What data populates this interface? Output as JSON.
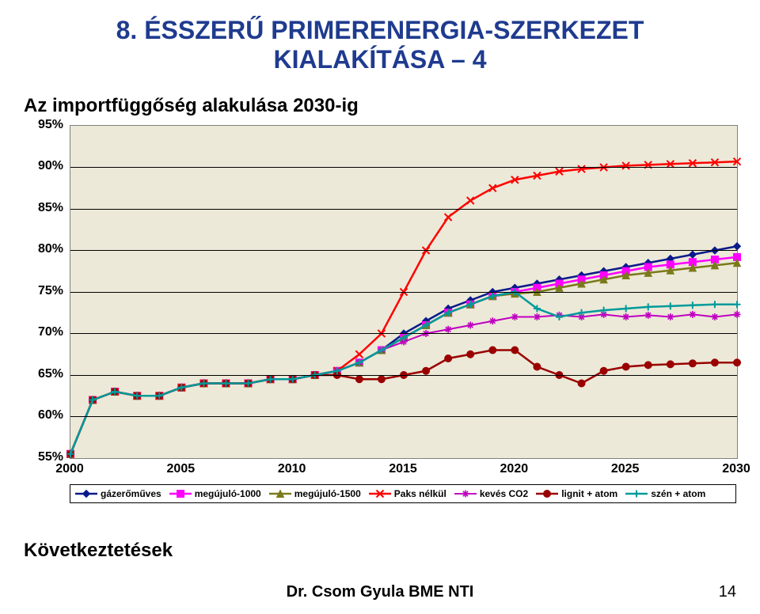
{
  "title_l1": "8. ÉSSZERŰ PRIMERENERGIA-SZERKEZET",
  "title_l2": "KIALAKÍTÁSA – 4",
  "title_color": "#1f3b8f",
  "subtitle": "Az importfüggőség alakulása 2030-ig",
  "conclusion": "Következtetések",
  "footer": "Dr. Csom Gyula BME NTI",
  "page_num": "14",
  "chart": {
    "background": "#ece9d8",
    "grid_color": "#000000",
    "ymin": 55,
    "ymax": 95,
    "ytick_step": 5,
    "xmin": 2000,
    "xmax": 2030,
    "xtick_step": 5,
    "x": [
      2000,
      2001,
      2002,
      2003,
      2004,
      2005,
      2006,
      2007,
      2008,
      2009,
      2010,
      2011,
      2012,
      2013,
      2014,
      2015,
      2016,
      2017,
      2018,
      2019,
      2020,
      2021,
      2022,
      2023,
      2024,
      2025,
      2026,
      2027,
      2028,
      2029,
      2030
    ],
    "series": [
      {
        "name": "gázerőműves",
        "label": "gázerőműves",
        "color": "#0a1a8a",
        "marker": "diamond",
        "lw": 2.5,
        "y": [
          55.5,
          62,
          63,
          62.5,
          62.5,
          63.5,
          64,
          64,
          64,
          64.5,
          64.5,
          65,
          65.5,
          66.5,
          68,
          70,
          71.5,
          73,
          74,
          75,
          75.5,
          76,
          76.5,
          77,
          77.5,
          78,
          78.5,
          79,
          79.5,
          80,
          80.5
        ]
      },
      {
        "name": "megújuló-1000",
        "label": "megújuló-1000",
        "color": "#ff00ff",
        "marker": "square",
        "lw": 2.5,
        "y": [
          55.5,
          62,
          63,
          62.5,
          62.5,
          63.5,
          64,
          64,
          64,
          64.5,
          64.5,
          65,
          65.5,
          66.5,
          68,
          69.5,
          71,
          72.5,
          73.5,
          74.5,
          75,
          75.5,
          76,
          76.5,
          77,
          77.5,
          78,
          78.3,
          78.6,
          78.9,
          79.2
        ]
      },
      {
        "name": "megújuló-1500",
        "label": "megújuló-1500",
        "color": "#7a7a1a",
        "marker": "triangle",
        "lw": 2.5,
        "y": [
          55.5,
          62,
          63,
          62.5,
          62.5,
          63.5,
          64,
          64,
          64,
          64.5,
          64.5,
          65,
          65.5,
          66.5,
          68,
          69.5,
          71,
          72.5,
          73.5,
          74.5,
          74.8,
          75,
          75.5,
          76,
          76.5,
          77,
          77.3,
          77.6,
          77.9,
          78.2,
          78.5
        ]
      },
      {
        "name": "Paks nélkül",
        "label": "Paks nélkül",
        "color": "#ff0000",
        "marker": "x",
        "lw": 2.5,
        "y": [
          55.5,
          62,
          63,
          62.5,
          62.5,
          63.5,
          64,
          64,
          64,
          64.5,
          64.5,
          65,
          65.5,
          67.5,
          70,
          75,
          80,
          84,
          86,
          87.5,
          88.5,
          89,
          89.5,
          89.8,
          90,
          90.2,
          90.3,
          90.4,
          90.5,
          90.6,
          90.7
        ]
      },
      {
        "name": "kevés CO2",
        "label": "kevés CO2",
        "color": "#c000c0",
        "marker": "star",
        "lw": 2,
        "y": [
          55.5,
          62,
          63,
          62.5,
          62.5,
          63.5,
          64,
          64,
          64,
          64.5,
          64.5,
          65,
          65.5,
          66.5,
          68,
          69,
          70,
          70.5,
          71,
          71.5,
          72,
          72,
          72.2,
          72,
          72.3,
          72,
          72.2,
          72,
          72.3,
          72,
          72.3
        ]
      },
      {
        "name": "lignit + atom",
        "label": "lignit + atom",
        "color": "#9a0000",
        "marker": "circle",
        "lw": 2.5,
        "y": [
          55.5,
          62,
          63,
          62.5,
          62.5,
          63.5,
          64,
          64,
          64,
          64.5,
          64.5,
          65,
          65,
          64.5,
          64.5,
          65,
          65.5,
          67,
          67.5,
          68,
          68,
          66,
          65,
          64,
          65.5,
          66,
          66.2,
          66.3,
          66.4,
          66.5,
          66.5
        ]
      },
      {
        "name": "szén + atom",
        "label": "szén + atom",
        "color": "#009a9a",
        "marker": "plus",
        "lw": 2.5,
        "y": [
          55.5,
          62,
          63,
          62.5,
          62.5,
          63.5,
          64,
          64,
          64,
          64.5,
          64.5,
          65,
          65.5,
          66.5,
          68,
          69.5,
          71,
          72.5,
          73.5,
          74.5,
          75,
          73,
          72,
          72.5,
          72.8,
          73,
          73.2,
          73.3,
          73.4,
          73.5,
          73.5
        ]
      }
    ]
  }
}
